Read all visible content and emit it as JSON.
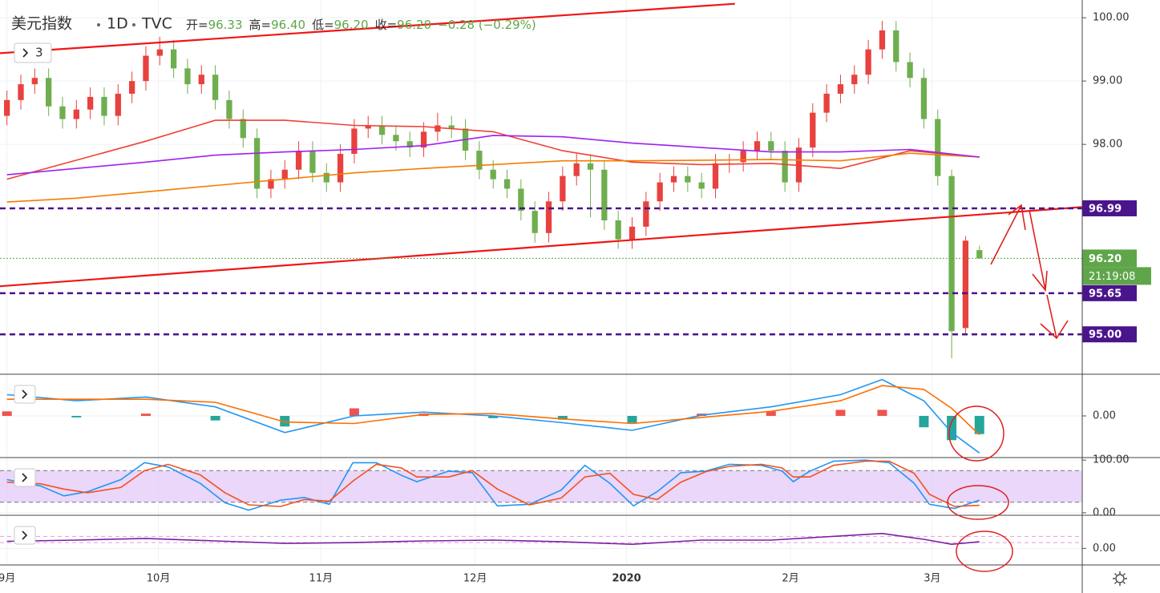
{
  "header": {
    "symbol": "美元指数",
    "interval": "1D",
    "source": "TVC",
    "ohlc": [
      {
        "label": "开=",
        "value": "96.33"
      },
      {
        "label": "高=",
        "value": "96.40"
      },
      {
        "label": "低=",
        "value": "96.20"
      },
      {
        "label": "收=",
        "value": "96.20"
      }
    ],
    "change": "−0.28 (−0.29%)",
    "indicators": "3"
  },
  "chart_data": [
    {
      "type": "candlestick",
      "up_color": "#e8413e",
      "down_color": "#6fae4f",
      "xlim": [
        -0.5,
        77.4
      ],
      "ylim": [
        94.37,
        100.28
      ],
      "yticks": [
        {
          "value": 100,
          "label": "100.00"
        },
        {
          "value": 99,
          "label": "99.00"
        },
        {
          "value": 98,
          "label": "98.00"
        }
      ],
      "xticks": [
        {
          "value": 0,
          "label": "9月"
        },
        {
          "value": 10.9,
          "label": "10月"
        },
        {
          "value": 22.6,
          "label": "11月"
        },
        {
          "value": 33.7,
          "label": "12月"
        },
        {
          "value": 44.6,
          "label": "2020"
        },
        {
          "value": 56.4,
          "label": "2月"
        },
        {
          "value": 66.6,
          "label": "3月"
        }
      ],
      "open": [
        98.45,
        98.7,
        98.95,
        99.05,
        98.6,
        98.4,
        98.55,
        98.75,
        98.45,
        98.8,
        99.0,
        99.4,
        99.5,
        99.2,
        98.95,
        99.1,
        98.7,
        98.4,
        98.1,
        97.3,
        97.45,
        97.6,
        97.9,
        97.55,
        97.4,
        97.85,
        98.25,
        98.3,
        98.15,
        98.05,
        97.95,
        98.2,
        98.3,
        98.25,
        97.9,
        97.6,
        97.45,
        97.3,
        96.95,
        96.6,
        97.1,
        97.5,
        97.7,
        97.6,
        96.8,
        96.5,
        96.7,
        97.1,
        97.4,
        97.5,
        97.4,
        97.3,
        97.7,
        97.72,
        97.9,
        98.05,
        97.9,
        97.4,
        97.95,
        98.5,
        98.8,
        98.95,
        99.1,
        99.5,
        99.8,
        99.3,
        99.05,
        98.4,
        97.5,
        95.1,
        96.33
      ],
      "high": [
        98.85,
        99.1,
        99.2,
        99.2,
        98.75,
        98.7,
        98.9,
        98.9,
        98.95,
        99.15,
        99.55,
        99.7,
        99.65,
        99.35,
        99.25,
        99.25,
        98.85,
        98.55,
        98.25,
        97.6,
        97.75,
        98.05,
        98.05,
        97.7,
        98.0,
        98.4,
        98.45,
        98.45,
        98.3,
        98.2,
        98.35,
        98.5,
        98.45,
        98.4,
        98.05,
        97.75,
        97.6,
        97.45,
        97.1,
        97.25,
        97.65,
        97.85,
        97.85,
        97.75,
        96.95,
        96.85,
        97.25,
        97.55,
        97.65,
        97.65,
        97.55,
        97.85,
        97.85,
        98.05,
        98.2,
        98.2,
        98.05,
        98.1,
        98.65,
        98.95,
        99.1,
        99.25,
        99.65,
        99.95,
        99.95,
        99.45,
        99.2,
        98.55,
        97.6,
        96.55,
        96.4
      ],
      "low": [
        98.3,
        98.55,
        98.8,
        98.45,
        98.25,
        98.25,
        98.4,
        98.3,
        98.3,
        98.65,
        98.85,
        99.25,
        99.05,
        98.8,
        98.8,
        98.55,
        98.25,
        97.95,
        97.15,
        97.15,
        97.3,
        97.45,
        97.4,
        97.25,
        97.25,
        97.7,
        98.1,
        98.0,
        97.9,
        97.8,
        97.8,
        98.05,
        98.1,
        97.75,
        97.45,
        97.3,
        97.15,
        96.8,
        96.45,
        96.45,
        96.95,
        97.35,
        96.85,
        96.65,
        96.35,
        96.35,
        96.55,
        96.95,
        97.25,
        97.25,
        97.15,
        97.15,
        97.55,
        97.57,
        97.75,
        97.75,
        97.25,
        97.25,
        97.8,
        98.35,
        98.65,
        98.8,
        98.95,
        99.35,
        99.15,
        98.9,
        98.25,
        97.35,
        94.62,
        95.0,
        96.2
      ],
      "close": [
        98.7,
        98.95,
        99.05,
        98.6,
        98.4,
        98.55,
        98.75,
        98.45,
        98.8,
        99.0,
        99.4,
        99.5,
        99.2,
        98.95,
        99.1,
        98.7,
        98.4,
        98.1,
        97.3,
        97.45,
        97.6,
        97.9,
        97.55,
        97.4,
        97.85,
        98.25,
        98.3,
        98.15,
        98.05,
        97.95,
        98.2,
        98.3,
        98.25,
        97.9,
        97.6,
        97.45,
        97.3,
        96.95,
        96.6,
        97.1,
        97.5,
        97.7,
        97.6,
        96.8,
        96.5,
        96.7,
        97.1,
        97.4,
        97.5,
        97.4,
        97.3,
        97.7,
        97.7,
        97.9,
        98.05,
        97.9,
        97.4,
        97.95,
        98.5,
        98.8,
        98.95,
        99.1,
        99.5,
        99.8,
        99.3,
        99.05,
        98.4,
        97.5,
        95.05,
        96.48,
        96.2
      ],
      "series": [
        {
          "color": "#ef4136",
          "x": [
            0,
            5,
            10,
            15,
            20,
            25,
            30,
            35,
            40,
            45,
            50,
            55,
            60,
            65,
            70
          ],
          "values": [
            97.45,
            97.75,
            98.05,
            98.38,
            98.38,
            98.3,
            98.28,
            98.2,
            97.9,
            97.72,
            97.68,
            97.7,
            97.62,
            97.9,
            97.8
          ]
        },
        {
          "color": "#f57c00",
          "x": [
            0,
            5,
            10,
            15,
            20,
            25,
            30,
            35,
            40,
            45,
            50,
            55,
            60,
            65,
            70
          ],
          "values": [
            97.09,
            97.15,
            97.25,
            97.35,
            97.45,
            97.55,
            97.62,
            97.68,
            97.74,
            97.74,
            97.75,
            97.76,
            97.74,
            97.86,
            97.8
          ]
        },
        {
          "color": "#a020f0",
          "x": [
            0,
            5,
            10,
            15,
            20,
            25,
            30,
            35,
            40,
            45,
            50,
            55,
            60,
            65,
            70
          ],
          "values": [
            97.52,
            97.62,
            97.72,
            97.83,
            97.88,
            97.92,
            97.98,
            98.14,
            98.12,
            98.02,
            97.95,
            97.88,
            97.88,
            97.92,
            97.8
          ]
        }
      ],
      "trendlines": [
        {
          "color": "#f01616",
          "x": [
            -0.5,
            52.4
          ],
          "values": [
            99.44,
            100.22
          ]
        },
        {
          "color": "#f01616",
          "x": [
            -0.5,
            77.4
          ],
          "values": [
            95.76,
            97.01
          ]
        }
      ],
      "levels": [
        {
          "value": 96.99,
          "label": "96.99"
        },
        {
          "value": 95.65,
          "label": "95.65"
        },
        {
          "value": 95.0,
          "label": "95.00"
        }
      ],
      "level_color": "#4a148c",
      "last_price": {
        "value": 96.2,
        "label": "96.20",
        "countdown": "21:19:08",
        "color": "#5fa64a"
      }
    },
    {
      "type": "macd",
      "xlim": [
        -0.5,
        77.4
      ],
      "ylim": [
        -0.55,
        0.55
      ],
      "yticks": [
        {
          "value": 0,
          "label": "0.00"
        }
      ],
      "histogram": {
        "x": [
          0,
          5,
          10,
          15,
          20,
          25,
          30,
          35,
          40,
          45,
          50,
          55,
          60,
          63,
          66,
          68,
          70
        ],
        "values": [
          0.06,
          -0.02,
          0.03,
          -0.06,
          -0.14,
          0.1,
          0.03,
          -0.03,
          -0.05,
          -0.09,
          0.03,
          0.06,
          0.08,
          0.08,
          -0.15,
          -0.32,
          -0.24
        ],
        "up_color": "#ef5350",
        "down_color": "#26a69a"
      },
      "series": [
        {
          "color": "#2196f3",
          "x": [
            0,
            5,
            10,
            15,
            20,
            25,
            30,
            35,
            40,
            45,
            50,
            55,
            60,
            63,
            66,
            68,
            70
          ],
          "values": [
            0.28,
            0.2,
            0.25,
            0.12,
            -0.22,
            0.0,
            0.05,
            0.0,
            -0.09,
            -0.19,
            0.01,
            0.12,
            0.28,
            0.48,
            0.2,
            -0.22,
            -0.49
          ]
        },
        {
          "color": "#ff6d00",
          "x": [
            0,
            5,
            10,
            15,
            20,
            25,
            30,
            35,
            40,
            45,
            50,
            55,
            60,
            63,
            66,
            68,
            70
          ],
          "values": [
            0.22,
            0.22,
            0.22,
            0.18,
            -0.08,
            -0.1,
            0.02,
            0.03,
            -0.04,
            -0.1,
            -0.02,
            0.06,
            0.2,
            0.4,
            0.35,
            0.1,
            -0.25
          ]
        }
      ]
    },
    {
      "type": "line",
      "xlim": [
        -0.5,
        77.4
      ],
      "ylim": [
        -4.8,
        104.8
      ],
      "yticks": [
        {
          "value": 100,
          "label": "100.00"
        },
        {
          "value": 0,
          "label": "0.00"
        }
      ],
      "band": {
        "values": [
          20,
          80
        ],
        "color": "#e3c9f7",
        "line_color": "#777"
      },
      "series": [
        {
          "color": "#2196f3",
          "x": [
            0,
            2.4,
            4.1,
            5.8,
            8.2,
            9.9,
            11.6,
            13.9,
            15.7,
            17.4,
            19.7,
            21.4,
            23.2,
            24.9,
            26.6,
            28.4,
            29.5,
            31.8,
            33.5,
            35.3,
            37.6,
            39.9,
            41.6,
            43.4,
            45.1,
            46.8,
            48.5,
            50.3,
            52.0,
            54.3,
            55.8,
            56.6,
            57.8,
            59.5,
            61.8,
            63.5,
            65.3,
            66.4,
            68.2,
            70.0
          ],
          "values": [
            63,
            51,
            32,
            40,
            63,
            95,
            87,
            56,
            19,
            5,
            24,
            29,
            16,
            95,
            95,
            71,
            59,
            79,
            76,
            13,
            16,
            43,
            90,
            56,
            13,
            40,
            76,
            79,
            92,
            90,
            79,
            59,
            79,
            98,
            100,
            95,
            56,
            16,
            8,
            24
          ]
        },
        {
          "color": "#f4511e",
          "x": [
            0,
            2.4,
            4.1,
            5.8,
            8.2,
            9.9,
            11.6,
            13.9,
            15.7,
            17.4,
            19.7,
            21.4,
            23.2,
            24.9,
            26.6,
            28.4,
            29.5,
            31.8,
            33.5,
            35.3,
            37.6,
            39.9,
            41.6,
            43.4,
            45.1,
            46.8,
            48.5,
            50.3,
            52.0,
            54.3,
            55.8,
            56.6,
            57.8,
            59.5,
            61.8,
            63.5,
            65.3,
            66.4,
            68.2,
            70.0
          ],
          "values": [
            58,
            55,
            45,
            38,
            48,
            80,
            92,
            72,
            38,
            15,
            12,
            25,
            22,
            60,
            92,
            85,
            68,
            68,
            80,
            45,
            15,
            28,
            68,
            75,
            35,
            25,
            58,
            78,
            88,
            92,
            85,
            68,
            68,
            90,
            98,
            98,
            75,
            35,
            12,
            14
          ]
        }
      ]
    },
    {
      "type": "line",
      "xlim": [
        -0.5,
        77.4
      ],
      "ylim": [
        -0.4,
        0.8
      ],
      "yticks": [
        {
          "value": 0,
          "label": "0.00"
        }
      ],
      "ref_lines": {
        "values": [
          0.29,
          0.14
        ],
        "color": "#e59ae0"
      },
      "series": [
        {
          "color": "#7b1fa2",
          "x": [
            0,
            5,
            10,
            15,
            20,
            25,
            30,
            35,
            40,
            45,
            50,
            55,
            60,
            63,
            66,
            68,
            70
          ],
          "values": [
            0.17,
            0.2,
            0.24,
            0.18,
            0.12,
            0.14,
            0.18,
            0.2,
            0.16,
            0.1,
            0.2,
            0.2,
            0.3,
            0.36,
            0.22,
            0.1,
            0.16
          ]
        }
      ]
    }
  ]
}
